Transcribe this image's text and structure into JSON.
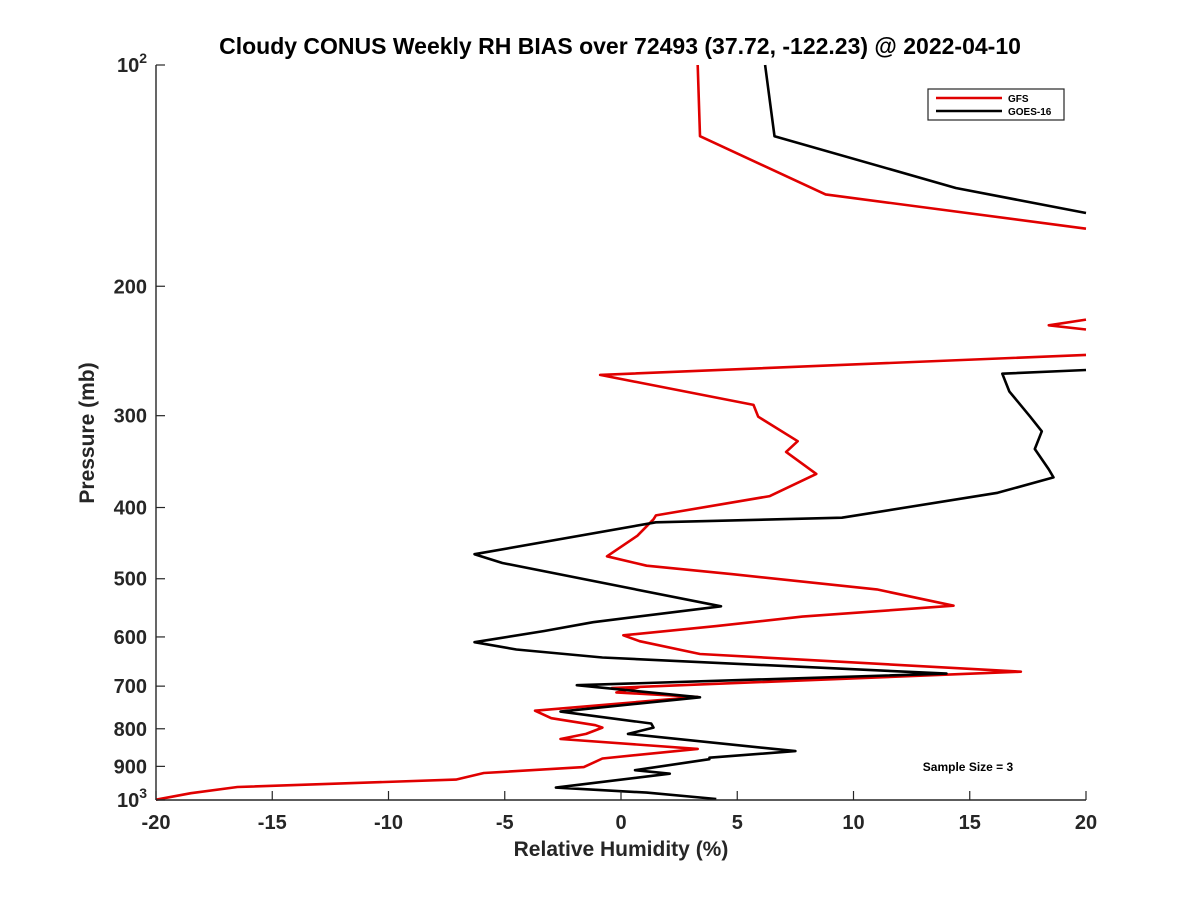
{
  "chart_data": {
    "type": "line",
    "title": "Cloudy CONUS Weekly RH BIAS over 72493 (37.72, -122.23) @ 2022-04-10",
    "xlabel": "Relative Humidity (%)",
    "ylabel": "Pressure (mb)",
    "xlim": [
      -20,
      20
    ],
    "ylim": [
      100,
      1000
    ],
    "yscale": "log",
    "y_reversed": true,
    "xticks": [
      -20,
      -15,
      -10,
      -5,
      0,
      5,
      10,
      15,
      20
    ],
    "xtick_labels": [
      "-20",
      "-15",
      "-10",
      "-5",
      "0",
      "5",
      "10",
      "15",
      "20"
    ],
    "yticks": [
      {
        "value": 100,
        "base": "10",
        "exp": "2"
      },
      {
        "value": 200,
        "label": "200"
      },
      {
        "value": 300,
        "label": "300"
      },
      {
        "value": 400,
        "label": "400"
      },
      {
        "value": 500,
        "label": "500"
      },
      {
        "value": 600,
        "label": "600"
      },
      {
        "value": 700,
        "label": "700"
      },
      {
        "value": 800,
        "label": "800"
      },
      {
        "value": 900,
        "label": "900"
      },
      {
        "value": 1000,
        "base": "10",
        "exp": "3"
      }
    ],
    "grid": false,
    "legend_position": "top-right",
    "annotation": "Sample Size = 3",
    "series": [
      {
        "name": "GFS",
        "color": "#e00000",
        "segments": [
          [
            [
              3.3,
              100
            ],
            [
              3.4,
              125
            ],
            [
              8.8,
              150
            ],
            [
              20,
              167
            ]
          ],
          [
            [
              20,
              222
            ],
            [
              18.4,
              226
            ],
            [
              20,
              229
            ]
          ],
          [
            [
              20,
              248
            ],
            [
              -0.9,
              264
            ],
            [
              5.7,
              290
            ],
            [
              5.9,
              301
            ],
            [
              7.6,
              325
            ],
            [
              7.1,
              336
            ],
            [
              8.4,
              360
            ],
            [
              6.4,
              386
            ],
            [
              1.5,
              410
            ],
            [
              1.4,
              415
            ],
            [
              0.7,
              437
            ],
            [
              -0.6,
              466
            ],
            [
              1.1,
              480
            ],
            [
              4.8,
              493
            ],
            [
              11,
              517
            ],
            [
              14.3,
              544
            ],
            [
              7.8,
              563
            ],
            [
              4.1,
              580
            ],
            [
              0.1,
              597
            ],
            [
              0.8,
              608
            ],
            [
              3.4,
              633
            ],
            [
              17.2,
              669
            ],
            [
              -0.4,
              704
            ],
            [
              0.8,
              702
            ],
            [
              -0.2,
              714
            ],
            [
              3.3,
              724
            ],
            [
              -3.7,
              756
            ],
            [
              -3,
              774
            ],
            [
              -1.1,
              791
            ],
            [
              -0.8,
              797
            ],
            [
              -1.5,
              813
            ],
            [
              -2.6,
              826
            ],
            [
              3.3,
              852
            ],
            [
              -0.8,
              878
            ],
            [
              -1.6,
              902
            ],
            [
              -5.9,
              919
            ],
            [
              -7.1,
              938
            ],
            [
              -16.5,
              960
            ],
            [
              -18.5,
              979
            ],
            [
              -20,
              999
            ]
          ]
        ]
      },
      {
        "name": "GOES-16",
        "color": "#000000",
        "segments": [
          [
            [
              6.2,
              100
            ],
            [
              6.6,
              125
            ],
            [
              14.4,
              147
            ],
            [
              20,
              159
            ]
          ],
          [
            [
              20,
              260
            ],
            [
              16.4,
              263
            ],
            [
              16.7,
              278
            ],
            [
              17.6,
              301
            ],
            [
              18.1,
              315
            ],
            [
              17.8,
              333
            ],
            [
              18.4,
              355
            ],
            [
              18.6,
              364
            ],
            [
              16.2,
              382
            ],
            [
              9.5,
              413
            ],
            [
              1.5,
              419
            ],
            [
              -6.3,
              463
            ],
            [
              -5.1,
              476
            ],
            [
              4.3,
              545
            ],
            [
              -1.2,
              573
            ],
            [
              -3.3,
              589
            ],
            [
              -6.3,
              610
            ],
            [
              -4.5,
              624
            ],
            [
              -0.8,
              640
            ],
            [
              14,
              673
            ],
            [
              -1.9,
              698
            ],
            [
              3.4,
              725
            ],
            [
              -2.6,
              758
            ],
            [
              1.3,
              787
            ],
            [
              1.4,
              797
            ],
            [
              0.3,
              813
            ],
            [
              7.5,
              858
            ],
            [
              3.8,
              876
            ],
            [
              3.8,
              880
            ],
            [
              0.6,
              911
            ],
            [
              2.1,
              921
            ],
            [
              -2.8,
              962
            ],
            [
              1.1,
              977
            ],
            [
              4.1,
              997
            ]
          ]
        ]
      }
    ]
  }
}
